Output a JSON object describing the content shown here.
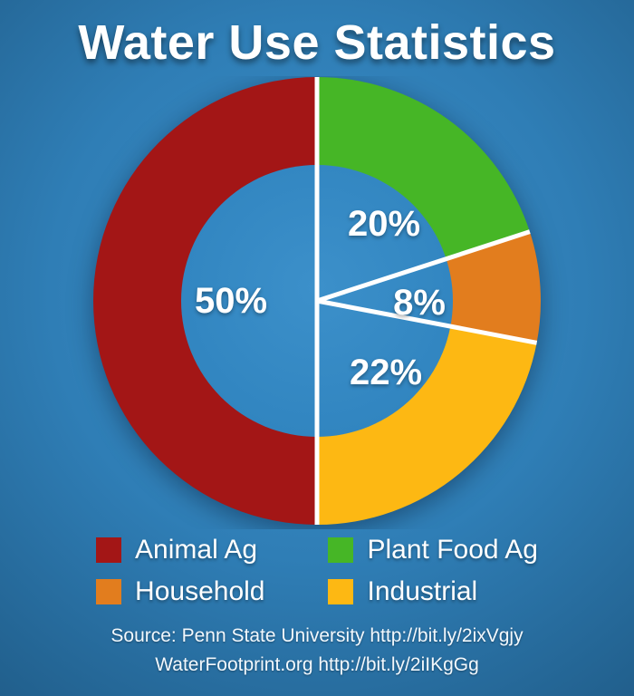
{
  "title": "Water Use Statistics",
  "chart_data": {
    "type": "pie",
    "donut": true,
    "title": "Water Use Statistics",
    "start_angle_deg": -90,
    "direction": "clockwise",
    "slices": [
      {
        "name": "Plant Food Ag",
        "value": 20,
        "pct": "20%",
        "color": "#46b626"
      },
      {
        "name": "Household",
        "value": 8,
        "pct": "8%",
        "color": "#e27d1e"
      },
      {
        "name": "Industrial",
        "value": 22,
        "pct": "22%",
        "color": "#fdb813"
      },
      {
        "name": "Animal Ag",
        "value": 50,
        "pct": "50%",
        "color": "#a31616"
      }
    ],
    "divider_color": "#ffffff",
    "legend_position": "bottom"
  },
  "legend": {
    "items": [
      {
        "label": "Animal Ag",
        "color": "#a31616"
      },
      {
        "label": "Plant Food Ag",
        "color": "#46b626"
      },
      {
        "label": "Household",
        "color": "#e27d1e"
      },
      {
        "label": "Industrial",
        "color": "#fdb813"
      }
    ]
  },
  "source": {
    "line1": "Source: Penn State University http://bit.ly/2ixVgjy",
    "line2": "WaterFootprint.org http://bit.ly/2iIKgGg"
  },
  "colors": {
    "background": "#2f7eb6",
    "text": "#ffffff"
  }
}
